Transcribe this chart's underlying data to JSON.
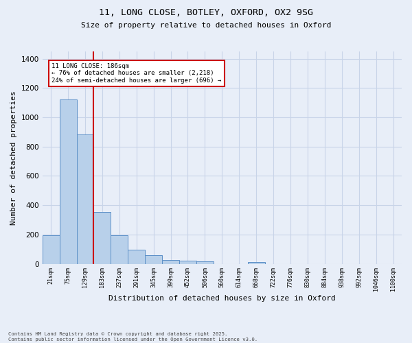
{
  "title_line1": "11, LONG CLOSE, BOTLEY, OXFORD, OX2 9SG",
  "title_line2": "Size of property relative to detached houses in Oxford",
  "xlabel": "Distribution of detached houses by size in Oxford",
  "ylabel": "Number of detached properties",
  "categories": [
    "21sqm",
    "75sqm",
    "129sqm",
    "183sqm",
    "237sqm",
    "291sqm",
    "345sqm",
    "399sqm",
    "452sqm",
    "506sqm",
    "560sqm",
    "614sqm",
    "668sqm",
    "722sqm",
    "776sqm",
    "830sqm",
    "884sqm",
    "938sqm",
    "992sqm",
    "1046sqm",
    "1100sqm"
  ],
  "values": [
    197,
    1120,
    885,
    352,
    197,
    95,
    58,
    25,
    22,
    15,
    0,
    0,
    12,
    0,
    0,
    0,
    0,
    0,
    0,
    0,
    0
  ],
  "bar_color": "#b8d0ea",
  "bar_edge_color": "#5b8fc7",
  "grid_color": "#c8d4e8",
  "background_color": "#e8eef8",
  "red_line_bin_index": 3,
  "annotation_text": "11 LONG CLOSE: 186sqm\n← 76% of detached houses are smaller (2,218)\n24% of semi-detached houses are larger (696) →",
  "annotation_box_color": "#ffffff",
  "annotation_box_edge": "#cc0000",
  "annotation_text_color": "#000000",
  "red_line_color": "#cc0000",
  "ylim": [
    0,
    1450
  ],
  "yticks": [
    0,
    200,
    400,
    600,
    800,
    1000,
    1200,
    1400
  ],
  "footer_line1": "Contains HM Land Registry data © Crown copyright and database right 2025.",
  "footer_line2": "Contains public sector information licensed under the Open Government Licence v3.0."
}
